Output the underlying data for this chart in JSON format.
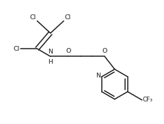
{
  "bg_color": "#ffffff",
  "line_color": "#1a1a1a",
  "line_width": 1.1,
  "font_size": 6.8,
  "font_family": "DejaVu Sans",
  "figsize": [
    2.4,
    1.81
  ],
  "dpi": 100,
  "xlim": [
    -0.05,
    1.3
  ],
  "ylim": [
    -0.05,
    1.05
  ]
}
